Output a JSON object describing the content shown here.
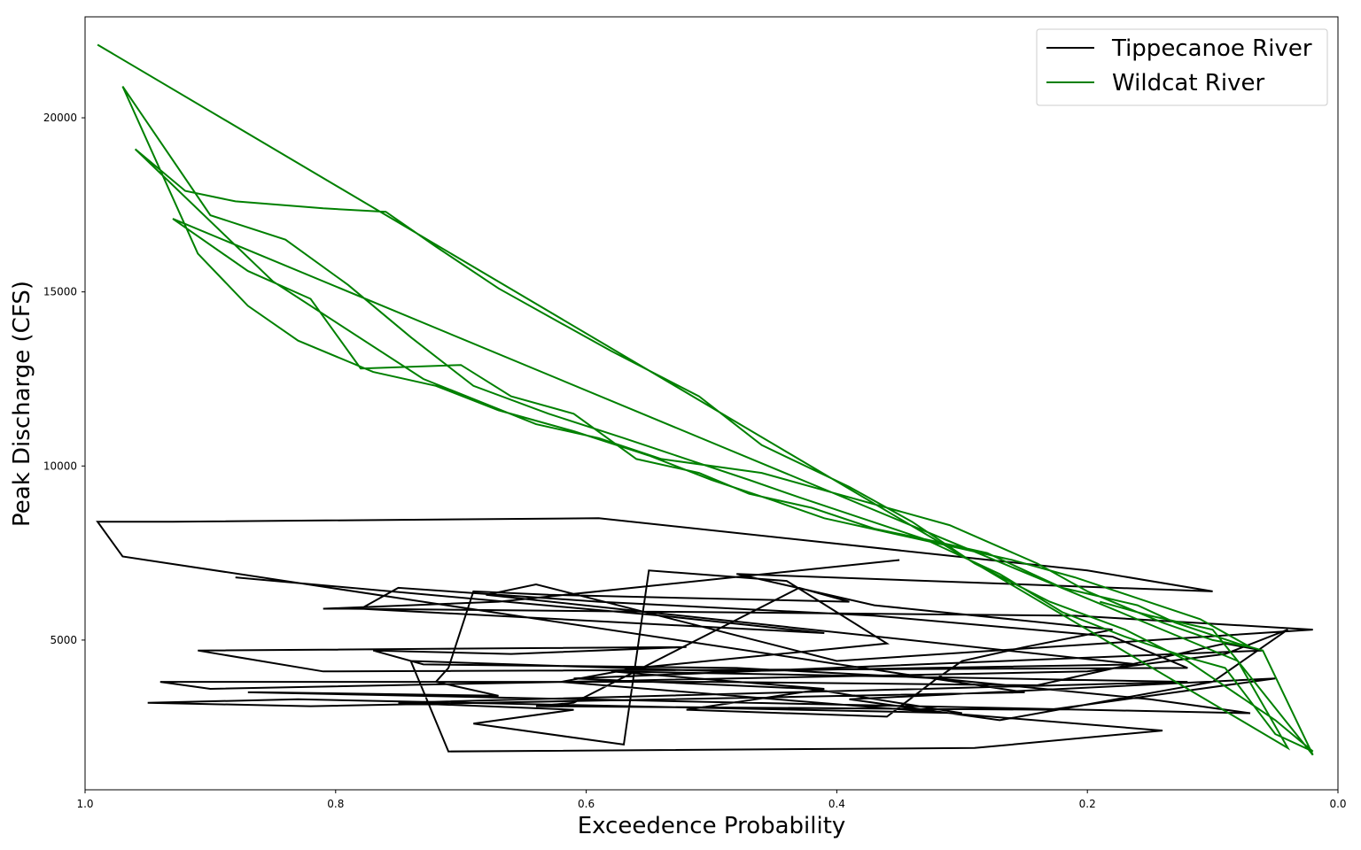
{
  "chart_data": {
    "type": "line",
    "title": "",
    "xlabel": "Exceedence Probability",
    "ylabel": "Peak Discharge (CFS)",
    "xlim": [
      1.0,
      0.0
    ],
    "ylim": [
      700,
      22900
    ],
    "x_ticks": [
      1.0,
      0.8,
      0.6,
      0.4,
      0.2,
      0.0
    ],
    "x_tick_labels": [
      "1.0",
      "0.8",
      "0.6",
      "0.4",
      "0.2",
      "0.0"
    ],
    "y_ticks": [
      5000,
      10000,
      15000,
      20000
    ],
    "y_tick_labels": [
      "5000",
      "10000",
      "15000",
      "20000"
    ],
    "grid": false,
    "legend_position": "top-right",
    "series": [
      {
        "name": "Tippecanoe River",
        "color": "#000000",
        "x": [
          0.88,
          0.54,
          0.41,
          0.78,
          0.75,
          0.59,
          0.37,
          0.18,
          0.12,
          0.81,
          0.91,
          0.52,
          0.66,
          0.77,
          0.73,
          0.48,
          0.32,
          0.15,
          0.07,
          0.87,
          0.86,
          0.67,
          0.72,
          0.71,
          0.69,
          0.63,
          0.39,
          0.43,
          0.61,
          0.64,
          0.23,
          0.05,
          0.39,
          0.27,
          0.1,
          0.04,
          0.09,
          0.2,
          0.9,
          0.94,
          0.5,
          0.24,
          0.09,
          0.06,
          0.61,
          0.42,
          0.3,
          0.83,
          0.95,
          0.82,
          0.25,
          0.97,
          0.99,
          0.93,
          0.59,
          0.2,
          0.1,
          0.48,
          0.37,
          0.18,
          0.25,
          0.3,
          0.32,
          0.36,
          0.52,
          0.41,
          0.58,
          0.12,
          0.75,
          0.61,
          0.69,
          0.57,
          0.55,
          0.44,
          0.36,
          0.56,
          0.62,
          0.14,
          0.29,
          0.71,
          0.74,
          0.49,
          0.16,
          0.68,
          0.64,
          0.4,
          0.02,
          0.21,
          0.79,
          0.81,
          0.67,
          0.35
        ],
        "y": [
          6800,
          5700,
          5200,
          5900,
          6500,
          6100,
          5700,
          5100,
          4200,
          4100,
          4700,
          4800,
          4600,
          4700,
          4300,
          4200,
          3900,
          3300,
          2900,
          3500,
          3500,
          3400,
          3800,
          4200,
          6400,
          6300,
          6100,
          6500,
          3200,
          3100,
          3000,
          3900,
          3300,
          2700,
          3800,
          5300,
          4600,
          4100,
          3600,
          3800,
          3800,
          3700,
          4900,
          4700,
          3900,
          3600,
          2900,
          3300,
          3200,
          3100,
          3500,
          7400,
          8400,
          8400,
          8500,
          7000,
          6400,
          6900,
          6000,
          5300,
          4800,
          4400,
          3900,
          2800,
          3000,
          3600,
          4100,
          3800,
          3200,
          3000,
          2600,
          2000,
          7000,
          6700,
          4900,
          4200,
          3800,
          2400,
          1900,
          1800,
          4400,
          4100,
          4300,
          6300,
          6600,
          4400,
          5300,
          5700,
          5900,
          5900,
          6100,
          7300
        ]
      },
      {
        "name": "Wildcat River",
        "color": "#008000",
        "x": [
          0.99,
          0.04,
          0.08,
          0.93,
          0.87,
          0.82,
          0.78,
          0.7,
          0.66,
          0.61,
          0.56,
          0.51,
          0.47,
          0.42,
          0.37,
          0.33,
          0.27,
          0.22,
          0.17,
          0.12,
          0.09,
          0.05,
          0.02,
          0.05,
          0.12,
          0.17,
          0.23,
          0.29,
          0.34,
          0.39,
          0.46,
          0.51,
          0.58,
          0.62,
          0.67,
          0.72,
          0.76,
          0.81,
          0.88,
          0.92,
          0.96,
          0.85,
          0.73,
          0.64,
          0.59,
          0.54,
          0.46,
          0.41,
          0.35,
          0.31,
          0.24,
          0.2,
          0.14,
          0.1,
          0.07,
          0.11,
          0.16,
          0.21,
          0.26,
          0.31,
          0.36,
          0.41,
          0.45,
          0.5,
          0.55,
          0.61,
          0.67,
          0.72,
          0.77,
          0.83,
          0.87,
          0.91,
          0.97,
          0.9,
          0.84,
          0.79,
          0.74,
          0.69,
          0.63,
          0.57,
          0.52,
          0.47,
          0.43,
          0.38,
          0.33,
          0.28,
          0.22,
          0.16,
          0.13,
          0.08,
          0.06,
          0.02,
          0.1,
          0.15,
          0.19
        ],
        "y": [
          22100,
          1900,
          4400,
          17100,
          15600,
          14800,
          12800,
          12900,
          12000,
          11500,
          10200,
          9800,
          9200,
          8800,
          8200,
          7900,
          6900,
          5800,
          5100,
          4500,
          4200,
          2300,
          1800,
          2700,
          4400,
          5300,
          6100,
          7200,
          8400,
          9400,
          10600,
          12000,
          13300,
          14100,
          15100,
          16300,
          17300,
          17400,
          17600,
          17900,
          19100,
          15300,
          12500,
          11200,
          10800,
          10200,
          9800,
          9300,
          8700,
          8300,
          7200,
          6400,
          5500,
          5000,
          4800,
          5600,
          6200,
          6800,
          7300,
          7700,
          8100,
          8500,
          9000,
          9600,
          10300,
          11000,
          11600,
          12300,
          12700,
          13600,
          14600,
          16100,
          20900,
          17200,
          16500,
          15200,
          13700,
          12300,
          11500,
          10800,
          10200,
          9600,
          9100,
          8500,
          7900,
          7500,
          6500,
          6000,
          5500,
          4900,
          4700,
          1700,
          5300,
          5700,
          6100
        ]
      }
    ]
  }
}
